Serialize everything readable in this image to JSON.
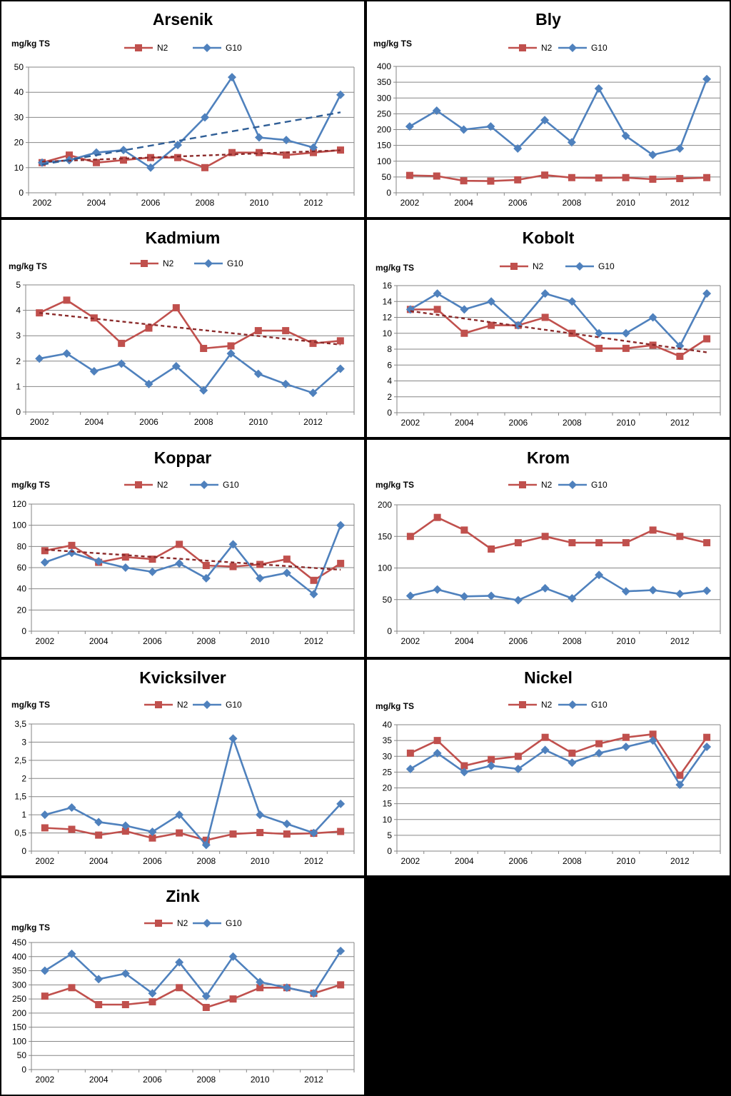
{
  "chart_data": [
    {
      "type": "line",
      "title": "Arsenik",
      "ylabel": "mg/kg TS",
      "x": [
        2002,
        2003,
        2004,
        2005,
        2006,
        2007,
        2008,
        2009,
        2010,
        2011,
        2012,
        2013
      ],
      "xticks": [
        2002,
        2004,
        2006,
        2008,
        2010,
        2012
      ],
      "ylim": [
        0,
        50
      ],
      "yticks": [
        "0",
        "10",
        "20",
        "30",
        "40",
        "50"
      ],
      "grid": true,
      "legend_position": "top",
      "series": [
        {
          "name": "N2",
          "color": "#c0504d",
          "marker": "square",
          "values": [
            12,
            15,
            12,
            13,
            14,
            14,
            10,
            16,
            16,
            15,
            16,
            17
          ],
          "trend": [
            12.4,
            16.9
          ]
        },
        {
          "name": "G10",
          "color": "#4f81bd",
          "marker": "diamond",
          "values": [
            12,
            13,
            16,
            17,
            10,
            19,
            30,
            46,
            22,
            21,
            18,
            39
          ],
          "trend": [
            11.2,
            32
          ]
        }
      ]
    },
    {
      "type": "line",
      "title": "Bly",
      "ylabel": "mg/kg TS",
      "x": [
        2002,
        2003,
        2004,
        2005,
        2006,
        2007,
        2008,
        2009,
        2010,
        2011,
        2012,
        2013
      ],
      "xticks": [
        2002,
        2004,
        2006,
        2008,
        2010,
        2012
      ],
      "ylim": [
        0,
        400
      ],
      "yticks": [
        "0",
        "50",
        "100",
        "150",
        "200",
        "250",
        "300",
        "350",
        "400"
      ],
      "grid": true,
      "legend_position": "top",
      "series": [
        {
          "name": "N2",
          "color": "#c0504d",
          "marker": "square",
          "values": [
            55,
            53,
            38,
            37,
            41,
            56,
            48,
            47,
            48,
            43,
            45,
            48
          ]
        },
        {
          "name": "G10",
          "color": "#4f81bd",
          "marker": "diamond",
          "values": [
            210,
            260,
            200,
            210,
            140,
            230,
            160,
            330,
            180,
            120,
            140,
            360
          ]
        }
      ]
    },
    {
      "type": "line",
      "title": "Kadmium",
      "ylabel": "mg/kg TS",
      "x": [
        2002,
        2003,
        2004,
        2005,
        2006,
        2007,
        2008,
        2009,
        2010,
        2011,
        2012,
        2013
      ],
      "xticks": [
        2002,
        2004,
        2006,
        2008,
        2010,
        2012
      ],
      "ylim": [
        0,
        5
      ],
      "yticks": [
        "0",
        "1",
        "2",
        "3",
        "4",
        "5"
      ],
      "grid": true,
      "legend_position": "top",
      "series": [
        {
          "name": "N2",
          "color": "#c0504d",
          "marker": "square",
          "values": [
            3.9,
            4.4,
            3.7,
            2.7,
            3.3,
            4.1,
            2.5,
            2.6,
            3.2,
            3.2,
            2.7,
            2.8
          ],
          "trend": [
            3.9,
            2.65
          ]
        },
        {
          "name": "G10",
          "color": "#4f81bd",
          "marker": "diamond",
          "values": [
            2.1,
            2.3,
            1.6,
            1.9,
            1.1,
            1.8,
            0.85,
            2.3,
            1.5,
            1.1,
            0.75,
            1.7
          ]
        }
      ]
    },
    {
      "type": "line",
      "title": "Kobolt",
      "ylabel": "mg/kg TS",
      "x": [
        2002,
        2003,
        2004,
        2005,
        2006,
        2007,
        2008,
        2009,
        2010,
        2011,
        2012,
        2013
      ],
      "xticks": [
        2002,
        2004,
        2006,
        2008,
        2010,
        2012
      ],
      "ylim": [
        0,
        16
      ],
      "yticks": [
        "0",
        "2",
        "4",
        "6",
        "8",
        "10",
        "12",
        "14",
        "16"
      ],
      "grid": true,
      "legend_position": "top",
      "series": [
        {
          "name": "N2",
          "color": "#c0504d",
          "marker": "square",
          "values": [
            13,
            13,
            10,
            11,
            11,
            12,
            10,
            8.1,
            8.1,
            8.5,
            7.1,
            9.3
          ],
          "trend": [
            12.8,
            7.6
          ]
        },
        {
          "name": "G10",
          "color": "#4f81bd",
          "marker": "diamond",
          "values": [
            13,
            15,
            13,
            14,
            11,
            15,
            14,
            10,
            10,
            12,
            8.4,
            15
          ]
        }
      ]
    },
    {
      "type": "line",
      "title": "Koppar",
      "ylabel": "mg/kg TS",
      "x": [
        2002,
        2003,
        2004,
        2005,
        2006,
        2007,
        2008,
        2009,
        2010,
        2011,
        2012,
        2013
      ],
      "xticks": [
        2002,
        2004,
        2006,
        2008,
        2010,
        2012
      ],
      "ylim": [
        0,
        120
      ],
      "yticks": [
        "0",
        "20",
        "40",
        "60",
        "80",
        "100",
        "120"
      ],
      "grid": true,
      "legend_position": "top",
      "series": [
        {
          "name": "N2",
          "color": "#c0504d",
          "marker": "square",
          "values": [
            76,
            81,
            65,
            70,
            68,
            82,
            62,
            61,
            63,
            68,
            48,
            64
          ],
          "trend": [
            77,
            58
          ]
        },
        {
          "name": "G10",
          "color": "#4f81bd",
          "marker": "diamond",
          "values": [
            65,
            74,
            66,
            60,
            56,
            64,
            50,
            82,
            50,
            55,
            35,
            100
          ]
        }
      ]
    },
    {
      "type": "line",
      "title": "Krom",
      "ylabel": "mg/kg TS",
      "x": [
        2002,
        2003,
        2004,
        2005,
        2006,
        2007,
        2008,
        2009,
        2010,
        2011,
        2012,
        2013
      ],
      "xticks": [
        2002,
        2004,
        2006,
        2008,
        2010,
        2012
      ],
      "ylim": [
        0,
        200
      ],
      "yticks": [
        "0",
        "50",
        "100",
        "150",
        "200"
      ],
      "grid": true,
      "legend_position": "top",
      "series": [
        {
          "name": "N2",
          "color": "#c0504d",
          "marker": "square",
          "values": [
            150,
            180,
            160,
            130,
            140,
            150,
            140,
            140,
            140,
            160,
            150,
            140
          ]
        },
        {
          "name": "G10",
          "color": "#4f81bd",
          "marker": "diamond",
          "values": [
            56,
            66,
            55,
            56,
            49,
            68,
            52,
            89,
            63,
            65,
            59,
            64
          ]
        }
      ]
    },
    {
      "type": "line",
      "title": "Kvicksilver",
      "ylabel": "mg/kg TS",
      "x": [
        2002,
        2003,
        2004,
        2005,
        2006,
        2007,
        2008,
        2009,
        2010,
        2011,
        2012,
        2013
      ],
      "xticks": [
        2002,
        2004,
        2006,
        2008,
        2010,
        2012
      ],
      "ylim": [
        0,
        3.5
      ],
      "yticks": [
        "0",
        "0,5",
        "1",
        "1,5",
        "2",
        "2,5",
        "3",
        "3,5"
      ],
      "grid": true,
      "legend_position": "top",
      "series": [
        {
          "name": "N2",
          "color": "#c0504d",
          "marker": "square",
          "values": [
            0.64,
            0.6,
            0.44,
            0.55,
            0.36,
            0.5,
            0.3,
            0.47,
            0.51,
            0.47,
            0.49,
            0.54
          ]
        },
        {
          "name": "G10",
          "color": "#4f81bd",
          "marker": "diamond",
          "values": [
            1.0,
            1.2,
            0.8,
            0.7,
            0.53,
            1.0,
            0.17,
            3.1,
            1.0,
            0.75,
            0.5,
            1.3
          ]
        }
      ]
    },
    {
      "type": "line",
      "title": "Nickel",
      "ylabel": "mg/kg TS",
      "x": [
        2002,
        2003,
        2004,
        2005,
        2006,
        2007,
        2008,
        2009,
        2010,
        2011,
        2012,
        2013
      ],
      "xticks": [
        2002,
        2004,
        2006,
        2008,
        2010,
        2012
      ],
      "ylim": [
        0,
        40
      ],
      "yticks": [
        "0",
        "5",
        "10",
        "15",
        "20",
        "25",
        "30",
        "35",
        "40"
      ],
      "grid": true,
      "legend_position": "top",
      "series": [
        {
          "name": "N2",
          "color": "#c0504d",
          "marker": "square",
          "values": [
            31,
            35,
            27,
            29,
            30,
            36,
            31,
            34,
            36,
            37,
            24,
            36
          ]
        },
        {
          "name": "G10",
          "color": "#4f81bd",
          "marker": "diamond",
          "values": [
            26,
            31,
            25,
            27,
            26,
            32,
            28,
            31,
            33,
            35,
            21,
            33
          ]
        }
      ]
    },
    {
      "type": "line",
      "title": "Zink",
      "ylabel": "mg/kg TS",
      "x": [
        2002,
        2003,
        2004,
        2005,
        2006,
        2007,
        2008,
        2009,
        2010,
        2011,
        2012,
        2013
      ],
      "xticks": [
        2002,
        2004,
        2006,
        2008,
        2010,
        2012
      ],
      "ylim": [
        0,
        450
      ],
      "yticks": [
        "0",
        "50",
        "100",
        "150",
        "200",
        "250",
        "300",
        "350",
        "400",
        "450"
      ],
      "grid": true,
      "legend_position": "top",
      "series": [
        {
          "name": "N2",
          "color": "#c0504d",
          "marker": "square",
          "values": [
            260,
            290,
            230,
            230,
            240,
            290,
            220,
            250,
            290,
            290,
            270,
            300
          ]
        },
        {
          "name": "G10",
          "color": "#4f81bd",
          "marker": "diamond",
          "values": [
            350,
            410,
            320,
            340,
            270,
            380,
            260,
            400,
            310,
            290,
            270,
            420
          ]
        }
      ]
    }
  ]
}
